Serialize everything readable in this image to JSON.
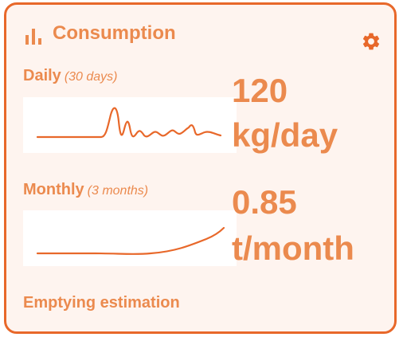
{
  "card": {
    "title": "Consumption",
    "header_icon": "bar-chart-icon",
    "settings_icon": "gear-icon",
    "accent_color": "#E8682A",
    "text_color": "#EB8A4E",
    "background_color": "#FEF4EF"
  },
  "daily": {
    "label": "Daily",
    "period": "(30 days)",
    "value": "120",
    "unit": "kg/day"
  },
  "monthly": {
    "label": "Monthly",
    "period": "(3 months)",
    "value": "0.85",
    "unit": "t/month"
  },
  "footer": {
    "label": "Emptying estimation"
  }
}
